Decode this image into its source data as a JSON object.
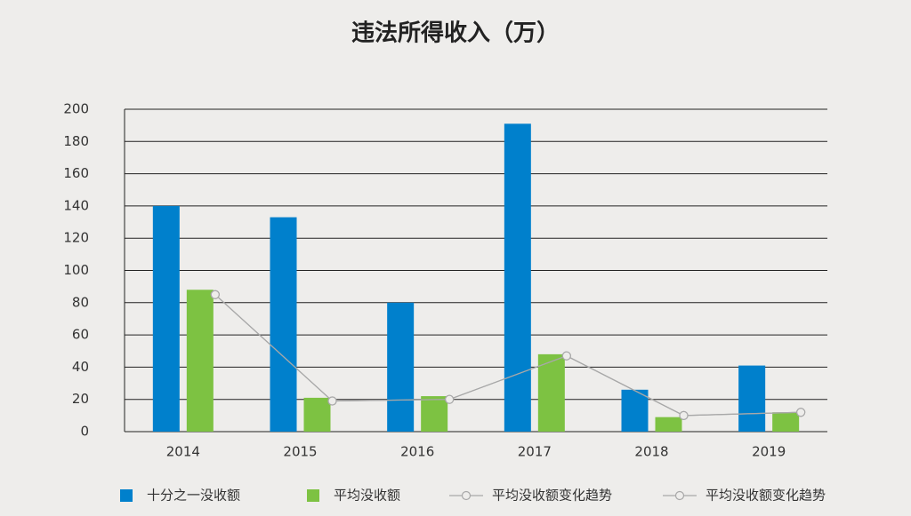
{
  "chart_data": {
    "type": "bar",
    "title": "违法所得收入（万）",
    "categories": [
      "2014",
      "2015",
      "2016",
      "2017",
      "2018",
      "2019"
    ],
    "series": [
      {
        "name": "十分之一没收额",
        "color": "#0080cc",
        "type": "bar",
        "values": [
          140,
          133,
          80,
          191,
          26,
          41
        ]
      },
      {
        "name": "平均没收额",
        "color": "#7dc242",
        "type": "bar",
        "values": [
          88,
          21,
          22,
          48,
          9,
          12
        ]
      },
      {
        "name": "平均没收额变化趋势",
        "color": "#a8a8a8",
        "type": "line",
        "values": [
          85,
          19,
          20,
          47,
          10,
          12
        ]
      },
      {
        "name": "平均没收额变化趋势",
        "color": "#a8a8a8",
        "type": "line",
        "values": [
          85,
          19,
          20,
          47,
          10,
          12
        ]
      }
    ],
    "ylim": [
      0,
      200
    ],
    "yticks": [
      0,
      20,
      40,
      60,
      80,
      100,
      120,
      140,
      160,
      180,
      200
    ],
    "grid": true
  }
}
